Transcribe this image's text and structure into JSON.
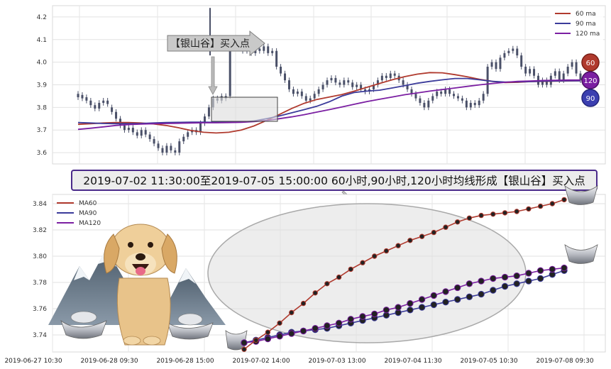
{
  "top_chart": {
    "legend": [
      "60 ma",
      "90 ma",
      "120 ma"
    ],
    "badges": [
      "60",
      "120",
      "90"
    ],
    "callout": "【银山谷】买入点"
  },
  "banner": "2019-07-02 11:30:00至2019-07-05 15:00:00 60小时,90小时,120小时均线形成【银山谷】买入点",
  "bottom_chart": {
    "legend": [
      "MA60",
      "MA90",
      "MA120"
    ],
    "x_tick_labels": [
      "2019-06-27 10:30",
      "2019-06-28 09:30",
      "2019-06-28 15:00",
      "2019-07-02 14:00",
      "2019-07-03 13:00",
      "2019-07-04 11:30",
      "2019-07-05 10:30",
      "2019-07-08 09:30"
    ]
  },
  "colors": {
    "ma60": "#b03a2e",
    "ma90": "#3b3b9a",
    "ma120": "#7b1fa2",
    "candle": "#4a5068",
    "badge60": "#b03a2e",
    "badge120": "#7b1fa2",
    "badge90": "#3b3fb0"
  },
  "chart_data": [
    {
      "type": "candlestick",
      "title": "",
      "ylim": [
        3.55,
        4.25
      ],
      "y_ticks": [
        3.6,
        3.7,
        3.8,
        3.9,
        4.0,
        4.1,
        4.2
      ],
      "grid": true,
      "legend_position": "top-right",
      "series": [
        {
          "name": "60 ma",
          "values": [
            3.725,
            3.728,
            3.731,
            3.733,
            3.733,
            3.731,
            3.727,
            3.72,
            3.71,
            3.698,
            3.69,
            3.687,
            3.69,
            3.7,
            3.718,
            3.742,
            3.768,
            3.795,
            3.818,
            3.835,
            3.846,
            3.857,
            3.872,
            3.889,
            3.906,
            3.922,
            3.936,
            3.947,
            3.954,
            3.953,
            3.945,
            3.935,
            3.924,
            3.915,
            3.91,
            3.911,
            3.914,
            3.915,
            3.916,
            3.917,
            3.918
          ]
        },
        {
          "name": "90 ma",
          "values": [
            3.733,
            3.731,
            3.729,
            3.728,
            3.728,
            3.729,
            3.731,
            3.733,
            3.734,
            3.735,
            3.735,
            3.734,
            3.734,
            3.735,
            3.74,
            3.75,
            3.762,
            3.776,
            3.79,
            3.805,
            3.825,
            3.85,
            3.866,
            3.872,
            3.876,
            3.886,
            3.896,
            3.907,
            3.915,
            3.922,
            3.928,
            3.928,
            3.922,
            3.915,
            3.912,
            3.913,
            3.914,
            3.916,
            3.917,
            3.918,
            3.918
          ]
        },
        {
          "name": "120 ma",
          "values": [
            3.703,
            3.708,
            3.714,
            3.72,
            3.724,
            3.726,
            3.728,
            3.729,
            3.73,
            3.731,
            3.732,
            3.732,
            3.733,
            3.734,
            3.737,
            3.742,
            3.75,
            3.758,
            3.768,
            3.779,
            3.79,
            3.802,
            3.814,
            3.826,
            3.836,
            3.846,
            3.856,
            3.864,
            3.872,
            3.879,
            3.886,
            3.893,
            3.9,
            3.906,
            3.911,
            3.915,
            3.917,
            3.919,
            3.92,
            3.921,
            3.921
          ]
        }
      ],
      "candles": [
        [
          3.86,
          3.845
        ],
        [
          3.84,
          3.855
        ],
        [
          3.845,
          3.83
        ],
        [
          3.83,
          3.81
        ],
        [
          3.81,
          3.795
        ],
        [
          3.795,
          3.82
        ],
        [
          3.82,
          3.83
        ],
        [
          3.83,
          3.815
        ],
        [
          3.8,
          3.78
        ],
        [
          3.78,
          3.75
        ],
        [
          3.75,
          3.72
        ],
        [
          3.72,
          3.7
        ],
        [
          3.7,
          3.71
        ],
        [
          3.71,
          3.69
        ],
        [
          3.69,
          3.675
        ],
        [
          3.675,
          3.7
        ],
        [
          3.7,
          3.68
        ],
        [
          3.68,
          3.66
        ],
        [
          3.66,
          3.64
        ],
        [
          3.64,
          3.62
        ],
        [
          3.62,
          3.6
        ],
        [
          3.6,
          3.63
        ],
        [
          3.63,
          3.61
        ],
        [
          3.61,
          3.6
        ],
        [
          3.6,
          3.65
        ],
        [
          3.65,
          3.67
        ],
        [
          3.67,
          3.69
        ],
        [
          3.69,
          3.7
        ],
        [
          3.7,
          3.69
        ],
        [
          3.69,
          3.73
        ],
        [
          3.73,
          3.76
        ],
        [
          3.76,
          3.8
        ],
        [
          3.8,
          3.84
        ],
        [
          3.84,
          3.83
        ],
        [
          3.83,
          3.85
        ],
        [
          3.85,
          3.84
        ],
        [
          3.85,
          4.07
        ],
        [
          4.07,
          4.06
        ],
        [
          4.06,
          4.08
        ],
        [
          4.08,
          4.05
        ],
        [
          4.05,
          4.07
        ],
        [
          4.07,
          4.04
        ],
        [
          4.04,
          4.06
        ],
        [
          4.06,
          4.05
        ],
        [
          4.05,
          4.07
        ],
        [
          4.07,
          4.04
        ],
        [
          4.04,
          4.05
        ],
        [
          4.05,
          3.98
        ],
        [
          3.98,
          3.95
        ],
        [
          3.95,
          3.92
        ],
        [
          3.92,
          3.88
        ],
        [
          3.88,
          3.86
        ],
        [
          3.86,
          3.87
        ],
        [
          3.87,
          3.85
        ],
        [
          3.85,
          3.83
        ],
        [
          3.83,
          3.84
        ],
        [
          3.84,
          3.86
        ],
        [
          3.86,
          3.88
        ],
        [
          3.88,
          3.9
        ],
        [
          3.9,
          3.92
        ],
        [
          3.92,
          3.93
        ],
        [
          3.93,
          3.91
        ],
        [
          3.91,
          3.9
        ],
        [
          3.9,
          3.92
        ],
        [
          3.92,
          3.91
        ],
        [
          3.91,
          3.89
        ],
        [
          3.89,
          3.9
        ],
        [
          3.9,
          3.88
        ],
        [
          3.88,
          3.87
        ],
        [
          3.87,
          3.88
        ],
        [
          3.88,
          3.9
        ],
        [
          3.9,
          3.92
        ],
        [
          3.92,
          3.94
        ],
        [
          3.94,
          3.93
        ],
        [
          3.93,
          3.95
        ],
        [
          3.95,
          3.94
        ],
        [
          3.94,
          3.92
        ],
        [
          3.92,
          3.9
        ],
        [
          3.9,
          3.88
        ],
        [
          3.88,
          3.86
        ],
        [
          3.86,
          3.84
        ],
        [
          3.84,
          3.82
        ],
        [
          3.82,
          3.8
        ],
        [
          3.8,
          3.83
        ],
        [
          3.83,
          3.85
        ],
        [
          3.85,
          3.87
        ],
        [
          3.87,
          3.86
        ],
        [
          3.86,
          3.88
        ],
        [
          3.88,
          3.86
        ],
        [
          3.86,
          3.85
        ],
        [
          3.85,
          3.84
        ],
        [
          3.84,
          3.83
        ],
        [
          3.83,
          3.8
        ],
        [
          3.8,
          3.82
        ],
        [
          3.82,
          3.81
        ],
        [
          3.81,
          3.83
        ],
        [
          3.83,
          3.86
        ],
        [
          3.86,
          3.98
        ],
        [
          3.98,
          4.0
        ],
        [
          4.0,
          3.97
        ],
        [
          3.97,
          4.02
        ],
        [
          4.02,
          4.04
        ],
        [
          4.04,
          4.05
        ],
        [
          4.05,
          4.06
        ],
        [
          4.06,
          4.03
        ],
        [
          4.03,
          3.98
        ],
        [
          3.98,
          3.95
        ],
        [
          3.95,
          3.97
        ],
        [
          3.97,
          3.94
        ],
        [
          3.94,
          3.9
        ],
        [
          3.9,
          3.92
        ],
        [
          3.92,
          3.9
        ],
        [
          3.9,
          3.94
        ],
        [
          3.94,
          3.96
        ],
        [
          3.96,
          3.92
        ],
        [
          3.92,
          3.95
        ],
        [
          3.95,
          3.98
        ],
        [
          3.98,
          4.0
        ],
        [
          4.0,
          3.95
        ],
        [
          3.95,
          3.92
        ]
      ]
    },
    {
      "type": "line",
      "title": "",
      "x_labels": [
        "2019-06-27 10:30",
        "2019-06-28 09:30",
        "2019-06-28 15:00",
        "2019-07-02 14:00",
        "2019-07-03 13:00",
        "2019-07-04 11:30",
        "2019-07-05 10:30",
        "2019-07-08 09:30"
      ],
      "ylim": [
        3.727,
        3.847
      ],
      "y_ticks": [
        3.74,
        3.76,
        3.78,
        3.8,
        3.82,
        3.84
      ],
      "grid": true,
      "legend_position": "top-left",
      "series": [
        {
          "name": "MA60",
          "values": [
            3.729,
            3.736,
            3.742,
            3.749,
            3.757,
            3.764,
            3.772,
            3.779,
            3.784,
            3.79,
            3.795,
            3.8,
            3.804,
            3.808,
            3.812,
            3.815,
            3.818,
            3.822,
            3.826,
            3.829,
            3.831,
            3.832,
            3.833,
            3.834,
            3.836,
            3.838,
            3.84,
            3.843
          ]
        },
        {
          "name": "MA90",
          "values": [
            3.734,
            3.736,
            3.738,
            3.74,
            3.742,
            3.743,
            3.744,
            3.745,
            3.747,
            3.749,
            3.751,
            3.753,
            3.755,
            3.757,
            3.759,
            3.761,
            3.763,
            3.765,
            3.767,
            3.769,
            3.771,
            3.774,
            3.777,
            3.779,
            3.781,
            3.783,
            3.786,
            3.789
          ]
        },
        {
          "name": "MA120",
          "values": [
            3.734,
            3.735,
            3.737,
            3.739,
            3.741,
            3.743,
            3.745,
            3.747,
            3.749,
            3.752,
            3.754,
            3.756,
            3.759,
            3.761,
            3.764,
            3.767,
            3.77,
            3.773,
            3.776,
            3.779,
            3.781,
            3.783,
            3.784,
            3.785,
            3.787,
            3.789,
            3.79,
            3.791
          ]
        }
      ]
    }
  ]
}
